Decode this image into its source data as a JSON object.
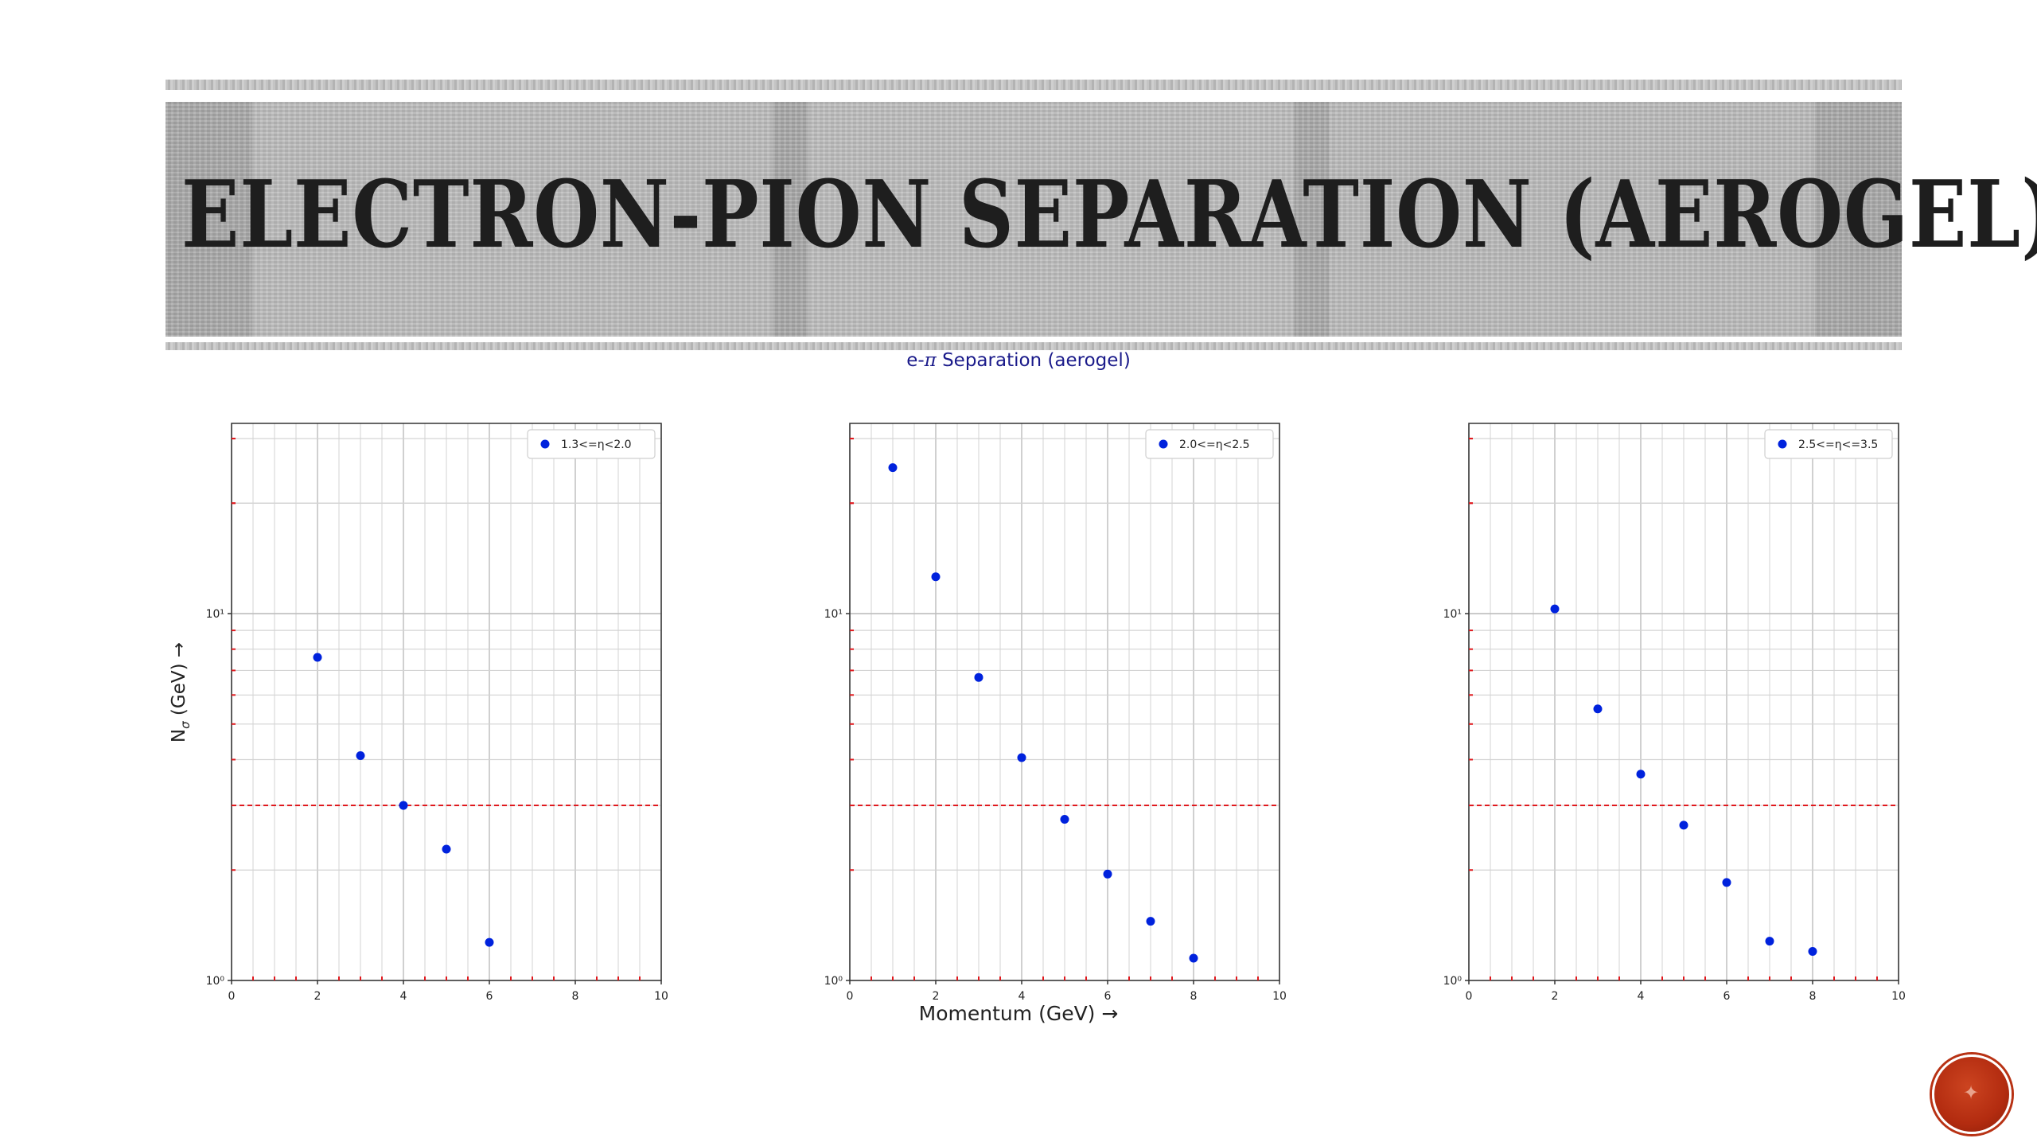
{
  "slide": {
    "title": "Electron-Pion Separation (aerogel)",
    "accent_color": "#b5321a"
  },
  "figure": {
    "title_prefix": "e-",
    "title_symbol": "π",
    "title_suffix": " Separation (aerogel)",
    "xlabel": "Momentum (GeV) →",
    "ylabel_prefix": "N",
    "ylabel_sub": "σ",
    "ylabel_suffix": " (GeV) →"
  },
  "chart_data": [
    {
      "type": "scatter",
      "legend": "1.3<=η<2.0",
      "legend_position": "top-right",
      "x": [
        2,
        3,
        4,
        5,
        6
      ],
      "y": [
        7.6,
        4.1,
        3.0,
        2.28,
        1.27
      ],
      "xlim": [
        0,
        10
      ],
      "ylim": [
        1,
        33
      ],
      "yscale": "log",
      "xticks": [
        "0",
        "2",
        "4",
        "6",
        "8",
        "10"
      ],
      "yticks": [
        "10⁰",
        "10¹"
      ],
      "threshold": 3,
      "grid": true,
      "marker_color": "#0022dd",
      "threshold_color": "#e0191e"
    },
    {
      "type": "scatter",
      "legend": "2.0<=η<2.5",
      "legend_position": "top-right",
      "x": [
        1,
        2,
        3,
        4,
        5,
        6,
        7,
        8
      ],
      "y": [
        25.0,
        12.6,
        6.7,
        4.05,
        2.75,
        1.95,
        1.45,
        1.15
      ],
      "xlim": [
        0,
        10
      ],
      "ylim": [
        1,
        33
      ],
      "yscale": "log",
      "xticks": [
        "0",
        "2",
        "4",
        "6",
        "8",
        "10"
      ],
      "yticks": [
        "10⁰",
        "10¹"
      ],
      "threshold": 3,
      "grid": true,
      "marker_color": "#0022dd",
      "threshold_color": "#e0191e"
    },
    {
      "type": "scatter",
      "legend": "2.5<=η<=3.5",
      "legend_position": "top-right",
      "x": [
        2,
        3,
        4,
        5,
        6,
        7,
        8
      ],
      "y": [
        10.3,
        5.5,
        3.65,
        2.65,
        1.85,
        1.28,
        1.2
      ],
      "xlim": [
        0,
        10
      ],
      "ylim": [
        1,
        33
      ],
      "yscale": "log",
      "xticks": [
        "0",
        "2",
        "4",
        "6",
        "8",
        "10"
      ],
      "yticks": [
        "10⁰",
        "10¹"
      ],
      "threshold": 3,
      "grid": true,
      "marker_color": "#0022dd",
      "threshold_color": "#e0191e"
    }
  ]
}
